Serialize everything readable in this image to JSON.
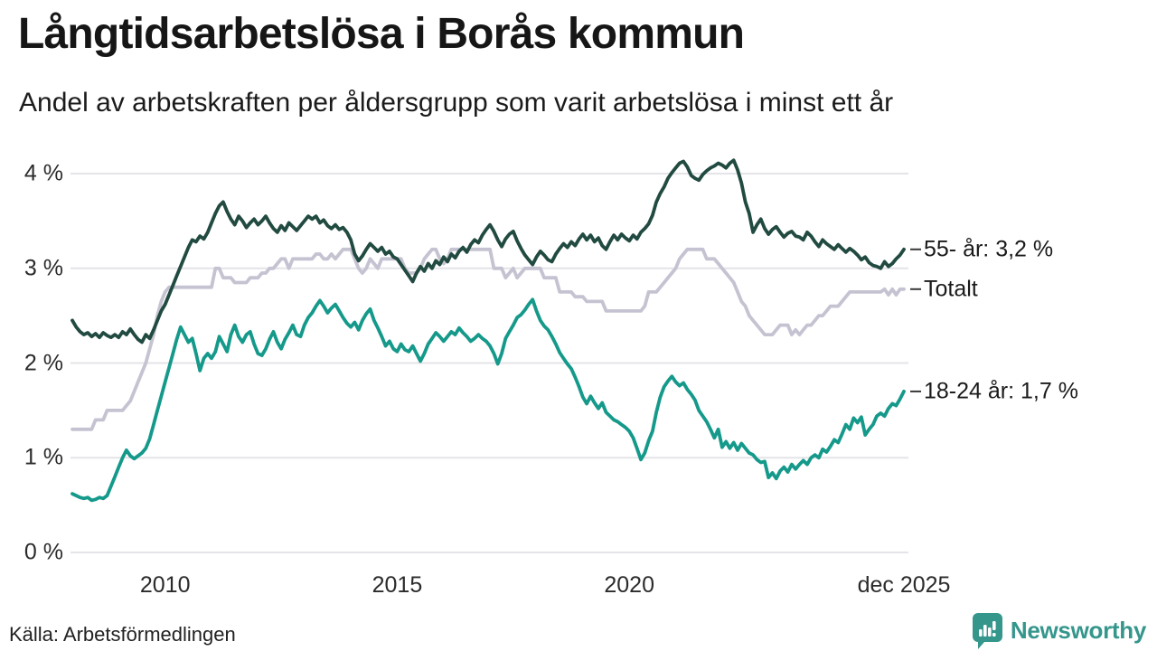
{
  "header": {
    "title": "Långtidsarbetslösa i Borås kommun",
    "subtitle": "Andel av arbetskraften per åldersgrupp som varit arbetslösa i minst ett år"
  },
  "footer": {
    "source": "Källa: Arbetsförmedlingen",
    "brand": "Newsworthy"
  },
  "colors": {
    "series_55": "#214a40",
    "series_total": "#c5c3d1",
    "series_18_24": "#14998a",
    "grid": "#e4e4e9",
    "tick_text": "#2b2b2b",
    "label_text": "#1a1a1a",
    "leader_dash": "#3a3a3a",
    "brand_teal": "#35968c",
    "background": "#ffffff"
  },
  "chart_data": {
    "type": "line",
    "title": "Långtidsarbetslösa i Borås kommun",
    "subtitle": "Andel av arbetskraften per åldersgrupp som varit arbetslösa i minst ett år",
    "unit": "%",
    "x_start_year": 2008,
    "points_per_year": 12,
    "x_end_label_year": 2025.917,
    "ylim": [
      0,
      4.3
    ],
    "grid": true,
    "legend_position": "right-end-labels",
    "y_ticks": [
      {
        "value": 0,
        "label": "0 %"
      },
      {
        "value": 1,
        "label": "1 %"
      },
      {
        "value": 2,
        "label": "2 %"
      },
      {
        "value": 3,
        "label": "3 %"
      },
      {
        "value": 4,
        "label": "4 %"
      }
    ],
    "x_ticks": [
      {
        "year": 2010,
        "label": "2010"
      },
      {
        "year": 2015,
        "label": "2015"
      },
      {
        "year": 2020,
        "label": "2020"
      },
      {
        "year": 2025.917,
        "label": "dec 2025"
      }
    ],
    "series": [
      {
        "name": "Totalt",
        "end_label": "Totalt",
        "end_value": 2.8,
        "color": "#c5c3d1",
        "values": [
          1.3,
          1.3,
          1.3,
          1.3,
          1.3,
          1.3,
          1.4,
          1.4,
          1.4,
          1.5,
          1.5,
          1.5,
          1.5,
          1.5,
          1.55,
          1.6,
          1.7,
          1.8,
          1.9,
          2.0,
          2.15,
          2.3,
          2.5,
          2.65,
          2.75,
          2.8,
          2.8,
          2.8,
          2.8,
          2.8,
          2.8,
          2.8,
          2.8,
          2.8,
          2.8,
          2.8,
          2.8,
          3.0,
          3.0,
          2.9,
          2.9,
          2.9,
          2.85,
          2.85,
          2.85,
          2.85,
          2.9,
          2.9,
          2.9,
          2.95,
          2.95,
          3.0,
          3.0,
          3.05,
          3.1,
          3.1,
          3.0,
          3.1,
          3.1,
          3.1,
          3.1,
          3.1,
          3.1,
          3.15,
          3.15,
          3.1,
          3.1,
          3.15,
          3.1,
          3.15,
          3.2,
          3.2,
          3.2,
          3.1,
          3.0,
          2.95,
          3.0,
          3.1,
          3.05,
          3.0,
          3.1,
          3.1,
          3.1,
          3.1,
          3.1,
          3.1,
          3.0,
          2.95,
          2.95,
          2.95,
          3.0,
          3.1,
          3.15,
          3.2,
          3.2,
          3.1,
          3.05,
          3.1,
          3.2,
          3.2,
          3.2,
          3.2,
          3.2,
          3.2,
          3.2,
          3.2,
          3.2,
          3.2,
          3.2,
          3.0,
          3.0,
          3.0,
          2.9,
          2.95,
          3.0,
          2.9,
          2.95,
          3.0,
          3.0,
          3.0,
          3.0,
          3.0,
          2.9,
          2.9,
          2.9,
          2.9,
          2.75,
          2.75,
          2.75,
          2.75,
          2.7,
          2.7,
          2.7,
          2.65,
          2.65,
          2.65,
          2.65,
          2.65,
          2.55,
          2.55,
          2.55,
          2.55,
          2.55,
          2.55,
          2.55,
          2.55,
          2.55,
          2.55,
          2.6,
          2.75,
          2.75,
          2.75,
          2.8,
          2.85,
          2.9,
          2.95,
          3.0,
          3.1,
          3.15,
          3.2,
          3.2,
          3.2,
          3.2,
          3.2,
          3.1,
          3.1,
          3.1,
          3.05,
          3.0,
          2.95,
          2.9,
          2.85,
          2.75,
          2.65,
          2.6,
          2.5,
          2.45,
          2.4,
          2.35,
          2.3,
          2.3,
          2.3,
          2.35,
          2.4,
          2.4,
          2.4,
          2.3,
          2.35,
          2.3,
          2.35,
          2.4,
          2.4,
          2.45,
          2.5,
          2.5,
          2.55,
          2.6,
          2.6,
          2.6,
          2.65,
          2.7,
          2.75,
          2.75,
          2.75,
          2.75,
          2.75,
          2.75,
          2.75,
          2.75,
          2.75,
          2.78,
          2.72,
          2.78,
          2.72,
          2.78,
          2.78
        ]
      },
      {
        "name": "18-24 år",
        "end_label": "18-24 år: 1,7 %",
        "end_value": 1.7,
        "color": "#14998a",
        "values": [
          0.62,
          0.6,
          0.58,
          0.57,
          0.58,
          0.55,
          0.56,
          0.58,
          0.57,
          0.6,
          0.7,
          0.8,
          0.9,
          1.0,
          1.08,
          1.02,
          0.99,
          1.02,
          1.05,
          1.1,
          1.2,
          1.35,
          1.5,
          1.65,
          1.8,
          1.95,
          2.1,
          2.25,
          2.38,
          2.3,
          2.22,
          2.26,
          2.1,
          1.92,
          2.05,
          2.1,
          2.05,
          2.12,
          2.28,
          2.2,
          2.12,
          2.3,
          2.4,
          2.28,
          2.22,
          2.3,
          2.33,
          2.2,
          2.1,
          2.08,
          2.15,
          2.25,
          2.33,
          2.22,
          2.15,
          2.25,
          2.32,
          2.4,
          2.3,
          2.28,
          2.4,
          2.48,
          2.53,
          2.6,
          2.66,
          2.6,
          2.53,
          2.58,
          2.62,
          2.55,
          2.48,
          2.42,
          2.38,
          2.43,
          2.35,
          2.45,
          2.52,
          2.57,
          2.45,
          2.37,
          2.28,
          2.18,
          2.23,
          2.15,
          2.12,
          2.2,
          2.14,
          2.12,
          2.18,
          2.1,
          2.02,
          2.1,
          2.2,
          2.26,
          2.32,
          2.28,
          2.23,
          2.28,
          2.33,
          2.3,
          2.37,
          2.32,
          2.28,
          2.23,
          2.26,
          2.3,
          2.26,
          2.23,
          2.18,
          2.1,
          1.99,
          2.1,
          2.26,
          2.33,
          2.4,
          2.48,
          2.51,
          2.56,
          2.62,
          2.67,
          2.55,
          2.45,
          2.39,
          2.35,
          2.28,
          2.2,
          2.11,
          2.05,
          1.99,
          1.94,
          1.85,
          1.75,
          1.64,
          1.57,
          1.65,
          1.58,
          1.52,
          1.58,
          1.48,
          1.44,
          1.4,
          1.38,
          1.35,
          1.32,
          1.28,
          1.21,
          1.1,
          0.98,
          1.05,
          1.18,
          1.28,
          1.48,
          1.64,
          1.75,
          1.81,
          1.86,
          1.8,
          1.76,
          1.79,
          1.72,
          1.67,
          1.61,
          1.5,
          1.44,
          1.38,
          1.3,
          1.21,
          1.3,
          1.11,
          1.17,
          1.1,
          1.16,
          1.08,
          1.15,
          1.1,
          1.05,
          1.03,
          0.98,
          0.95,
          0.96,
          0.79,
          0.84,
          0.78,
          0.86,
          0.9,
          0.85,
          0.93,
          0.88,
          0.93,
          0.97,
          0.93,
          1.0,
          1.03,
          1.0,
          1.09,
          1.06,
          1.12,
          1.19,
          1.16,
          1.25,
          1.35,
          1.3,
          1.42,
          1.37,
          1.43,
          1.24,
          1.3,
          1.35,
          1.44,
          1.47,
          1.44,
          1.52,
          1.57,
          1.55,
          1.62,
          1.7
        ]
      },
      {
        "name": "55- år",
        "end_label": "55- år: 3,2 %",
        "end_value": 3.2,
        "color": "#214a40",
        "values": [
          2.45,
          2.38,
          2.33,
          2.3,
          2.32,
          2.28,
          2.31,
          2.27,
          2.32,
          2.29,
          2.27,
          2.3,
          2.27,
          2.33,
          2.3,
          2.36,
          2.3,
          2.25,
          2.22,
          2.3,
          2.26,
          2.35,
          2.45,
          2.55,
          2.62,
          2.72,
          2.82,
          2.92,
          3.02,
          3.12,
          3.22,
          3.3,
          3.28,
          3.34,
          3.31,
          3.38,
          3.48,
          3.58,
          3.66,
          3.7,
          3.6,
          3.52,
          3.46,
          3.55,
          3.5,
          3.43,
          3.48,
          3.52,
          3.46,
          3.5,
          3.55,
          3.48,
          3.42,
          3.38,
          3.45,
          3.4,
          3.48,
          3.44,
          3.4,
          3.45,
          3.5,
          3.55,
          3.52,
          3.55,
          3.48,
          3.51,
          3.45,
          3.42,
          3.46,
          3.41,
          3.43,
          3.38,
          3.3,
          3.15,
          3.08,
          3.13,
          3.2,
          3.26,
          3.22,
          3.18,
          3.22,
          3.15,
          3.18,
          3.12,
          3.1,
          3.04,
          2.98,
          2.92,
          2.86,
          2.95,
          3.02,
          2.97,
          3.05,
          3.0,
          3.08,
          3.04,
          3.12,
          3.07,
          3.15,
          3.11,
          3.18,
          3.22,
          3.17,
          3.25,
          3.3,
          3.27,
          3.35,
          3.41,
          3.46,
          3.39,
          3.3,
          3.23,
          3.31,
          3.36,
          3.39,
          3.29,
          3.21,
          3.14,
          3.09,
          3.04,
          3.12,
          3.18,
          3.14,
          3.09,
          3.07,
          3.15,
          3.21,
          3.26,
          3.22,
          3.28,
          3.24,
          3.31,
          3.36,
          3.3,
          3.35,
          3.28,
          3.32,
          3.24,
          3.2,
          3.28,
          3.35,
          3.3,
          3.36,
          3.32,
          3.29,
          3.35,
          3.31,
          3.38,
          3.42,
          3.47,
          3.56,
          3.7,
          3.79,
          3.86,
          3.95,
          4.01,
          4.06,
          4.11,
          4.13,
          4.07,
          3.98,
          3.95,
          3.93,
          3.99,
          4.03,
          4.06,
          4.08,
          4.11,
          4.09,
          4.06,
          4.11,
          4.14,
          4.04,
          3.9,
          3.7,
          3.58,
          3.38,
          3.46,
          3.52,
          3.42,
          3.36,
          3.41,
          3.44,
          3.38,
          3.33,
          3.37,
          3.39,
          3.34,
          3.33,
          3.3,
          3.38,
          3.34,
          3.28,
          3.23,
          3.3,
          3.26,
          3.23,
          3.2,
          3.25,
          3.21,
          3.17,
          3.21,
          3.18,
          3.14,
          3.09,
          3.12,
          3.06,
          3.03,
          3.02,
          3.0,
          3.07,
          3.02,
          3.05,
          3.1,
          3.14,
          3.2
        ]
      }
    ]
  }
}
